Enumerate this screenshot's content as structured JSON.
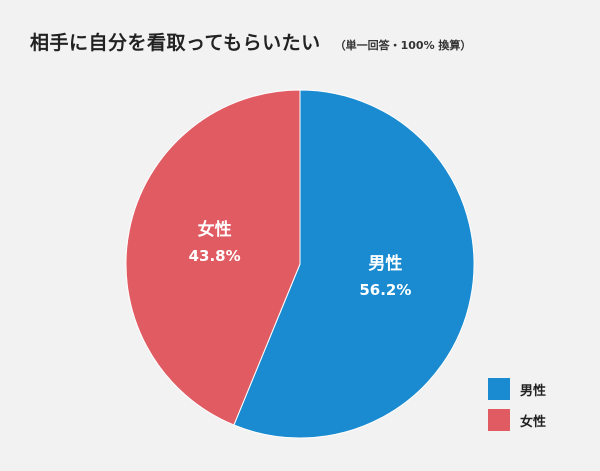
{
  "title": "相手に自分を看取ってもらいたい",
  "subtitle": "（単一回答・100% 換算）",
  "chart_data": {
    "type": "pie",
    "start": "12 o'clock, clockwise",
    "slices": [
      {
        "label": "男性",
        "value": 56.2,
        "value_label": "56.2%",
        "color": "#1a8bd0"
      },
      {
        "label": "女性",
        "value": 43.8,
        "value_label": "43.8%",
        "color": "#e05b62"
      }
    ],
    "legend": {
      "position": "bottom-right",
      "items": [
        "男性",
        "女性"
      ]
    }
  }
}
